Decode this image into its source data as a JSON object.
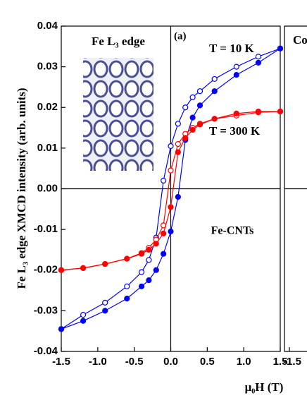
{
  "chart_data": [
    {
      "type": "line",
      "inset_label": "Fe L₃ edge",
      "panel_label": "(a)",
      "sample_label": "Fe-CNTs",
      "y_label": "Fe L₃ edge XMCD intensity (arb. units)",
      "x_label": "μ₀H (T)",
      "xlim": [
        -1.5,
        1.5
      ],
      "ylim": [
        -0.04,
        0.04
      ],
      "xticks": [
        -1.5,
        {
          "value": -1.0,
          "label": "-1.0"
        },
        -0.5,
        {
          "value": 0,
          "label": "0.0"
        },
        0.5,
        {
          "value": 1.0,
          "label": "1.0"
        },
        1.5
      ],
      "yticks": [
        0.04,
        0.03,
        0.02,
        0.01,
        {
          "value": 0,
          "label": "0.00"
        },
        -0.01,
        -0.02,
        -0.03,
        -0.04
      ],
      "series": [
        {
          "name": "T = 10 K",
          "color": "#0000ff",
          "branches": [
            {
              "filled": false,
              "x": [
                1.5,
                1.2,
                0.9,
                0.6,
                0.4,
                0.3,
                0.2,
                0.1,
                0,
                -0.1,
                -0.2,
                -0.3,
                -0.4,
                -0.6,
                -0.9,
                -1.2,
                -1.5
              ],
              "values": [
                0.0345,
                0.0325,
                0.03,
                0.027,
                0.024,
                0.0225,
                0.02,
                0.016,
                0.0105,
                0.002,
                -0.012,
                -0.0175,
                -0.0205,
                -0.024,
                -0.028,
                -0.031,
                -0.0345
              ]
            },
            {
              "filled": true,
              "x": [
                -1.5,
                -1.2,
                -0.9,
                -0.6,
                -0.4,
                -0.3,
                -0.2,
                -0.1,
                0,
                0.1,
                0.2,
                0.3,
                0.4,
                0.6,
                0.9,
                1.2,
                1.5
              ],
              "values": [
                -0.0345,
                -0.0325,
                -0.03,
                -0.027,
                -0.024,
                -0.0225,
                -0.02,
                -0.016,
                -0.0105,
                -0.002,
                0.012,
                0.0175,
                0.0205,
                0.024,
                0.028,
                0.031,
                0.0345
              ]
            }
          ]
        },
        {
          "name": "T = 300 K",
          "color": "#ff0000",
          "branches": [
            {
              "filled": false,
              "x": [
                1.5,
                1.2,
                0.9,
                0.6,
                0.4,
                0.3,
                0.2,
                0.1,
                0,
                -0.1,
                -0.2,
                -0.3,
                -0.4,
                -0.6,
                -0.9,
                -1.2,
                -1.5
              ],
              "values": [
                0.019,
                0.0188,
                0.018,
                0.0172,
                0.016,
                0.015,
                0.0135,
                0.011,
                0.0045,
                -0.009,
                -0.0125,
                -0.0145,
                -0.0158,
                -0.0172,
                -0.0185,
                -0.0195,
                -0.02
              ]
            },
            {
              "filled": true,
              "x": [
                -1.5,
                -1.2,
                -0.9,
                -0.6,
                -0.4,
                -0.3,
                -0.2,
                -0.1,
                0,
                0.1,
                0.2,
                0.3,
                0.4,
                0.6,
                0.9,
                1.2,
                1.5
              ],
              "values": [
                -0.02,
                -0.0195,
                -0.0185,
                -0.0172,
                -0.016,
                -0.015,
                -0.0135,
                -0.011,
                -0.0045,
                0.009,
                0.0125,
                0.0145,
                0.0158,
                0.0172,
                0.0185,
                0.019,
                0.019
              ]
            }
          ]
        }
      ]
    },
    {
      "type": "line",
      "title": "Co",
      "xticks": [
        {
          "value": -1.5,
          "label": "-1.5"
        }
      ]
    }
  ]
}
